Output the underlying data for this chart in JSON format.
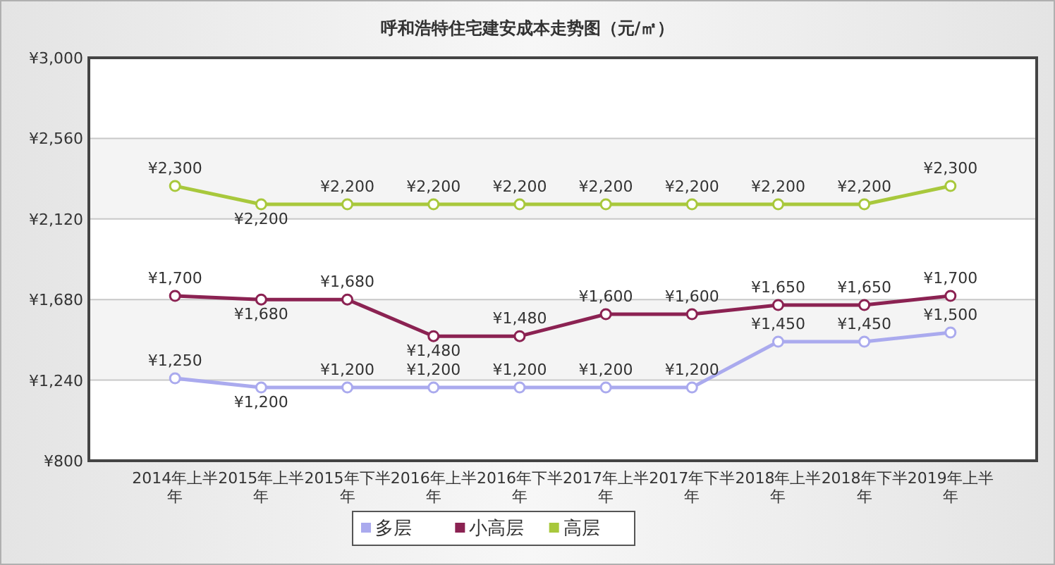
{
  "chart_data": {
    "type": "line",
    "title": "呼和浩特住宅建安成本走势图（元/㎡）",
    "categories": [
      "2014年上半年",
      "2015年上半年",
      "2015年下半年",
      "2016年上半年",
      "2016年下半年",
      "2017年上半年",
      "2017年下半年",
      "2018年上半年",
      "2018年下半年",
      "2019年上半年"
    ],
    "series": [
      {
        "name": "多层",
        "color": "#aaaaee",
        "values": [
          1250,
          1200,
          1200,
          1200,
          1200,
          1200,
          1200,
          1450,
          1450,
          1500
        ],
        "value_labels": [
          "¥1,250",
          "¥1,200",
          "¥1,200",
          "¥1,200",
          "¥1,200",
          "¥1,200",
          "¥1,200",
          "¥1,450",
          "¥1,450",
          "¥1,500"
        ]
      },
      {
        "name": "小高层",
        "color": "#8b2252",
        "values": [
          1700,
          1680,
          1680,
          1480,
          1480,
          1600,
          1600,
          1650,
          1650,
          1700
        ],
        "value_labels": [
          "¥1,700",
          "¥1,680",
          "¥1,680",
          "¥1,480",
          "¥1,480",
          "¥1,600",
          "¥1,600",
          "¥1,650",
          "¥1,650",
          "¥1,700"
        ]
      },
      {
        "name": "高层",
        "color": "#a8c83c",
        "values": [
          2300,
          2200,
          2200,
          2200,
          2200,
          2200,
          2200,
          2200,
          2200,
          2300
        ],
        "value_labels": [
          "¥2,300",
          "¥2,200",
          "¥2,200",
          "¥2,200",
          "¥2,200",
          "¥2,200",
          "¥2,200",
          "¥2,200",
          "¥2,200",
          "¥2,300"
        ]
      }
    ],
    "ylim": [
      800,
      3000
    ],
    "yticks": [
      {
        "value": 800,
        "label": "¥800"
      },
      {
        "value": 1240,
        "label": "¥1,240"
      },
      {
        "value": 1680,
        "label": "¥1,680"
      },
      {
        "value": 2120,
        "label": "¥2,120"
      },
      {
        "value": 2560,
        "label": "¥2,560"
      },
      {
        "value": 3000,
        "label": "¥3,000"
      }
    ],
    "grid": "y",
    "legend": "bottom",
    "marker": "circle",
    "line_style": "solid"
  }
}
